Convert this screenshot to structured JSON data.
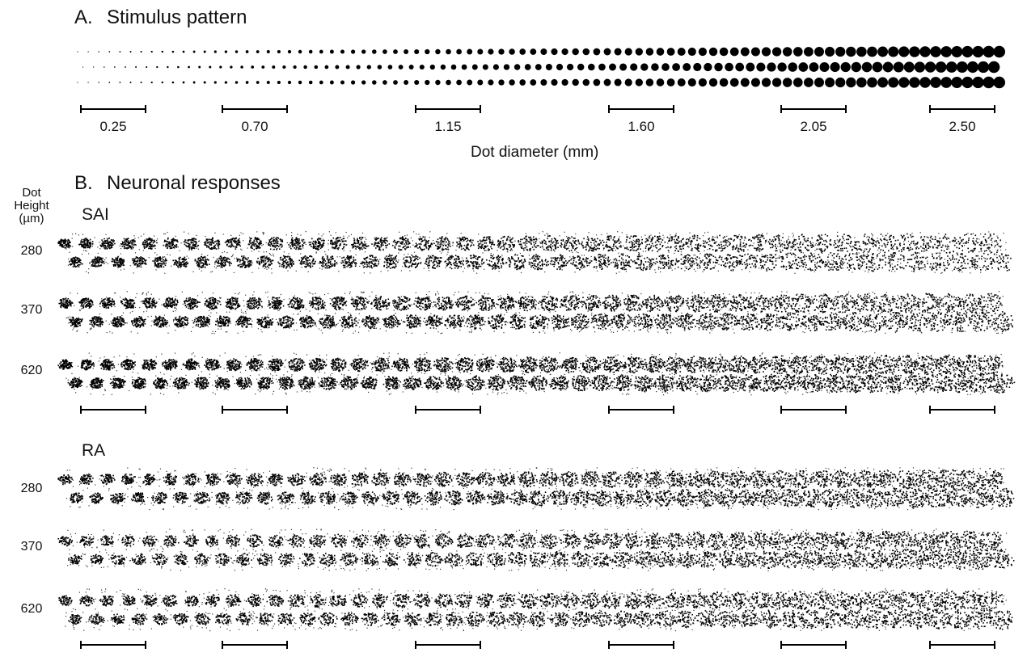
{
  "panel_a": {
    "letter": "A.",
    "title": "Stimulus pattern",
    "diameter_labels": [
      "0.25",
      "0.70",
      "1.15",
      "1.60",
      "2.05",
      "2.50"
    ],
    "xlabel": "Dot diameter (mm)"
  },
  "panel_b": {
    "letter": "B.",
    "title": "Neuronal responses",
    "axis_label_line1": "Dot",
    "axis_label_line2": "Height",
    "axis_label_line3": "(µm)",
    "groups": [
      {
        "name": "SAI",
        "heights": [
          "280",
          "370",
          "620"
        ]
      },
      {
        "name": "RA",
        "heights": [
          "280",
          "370",
          "620"
        ]
      }
    ]
  }
}
